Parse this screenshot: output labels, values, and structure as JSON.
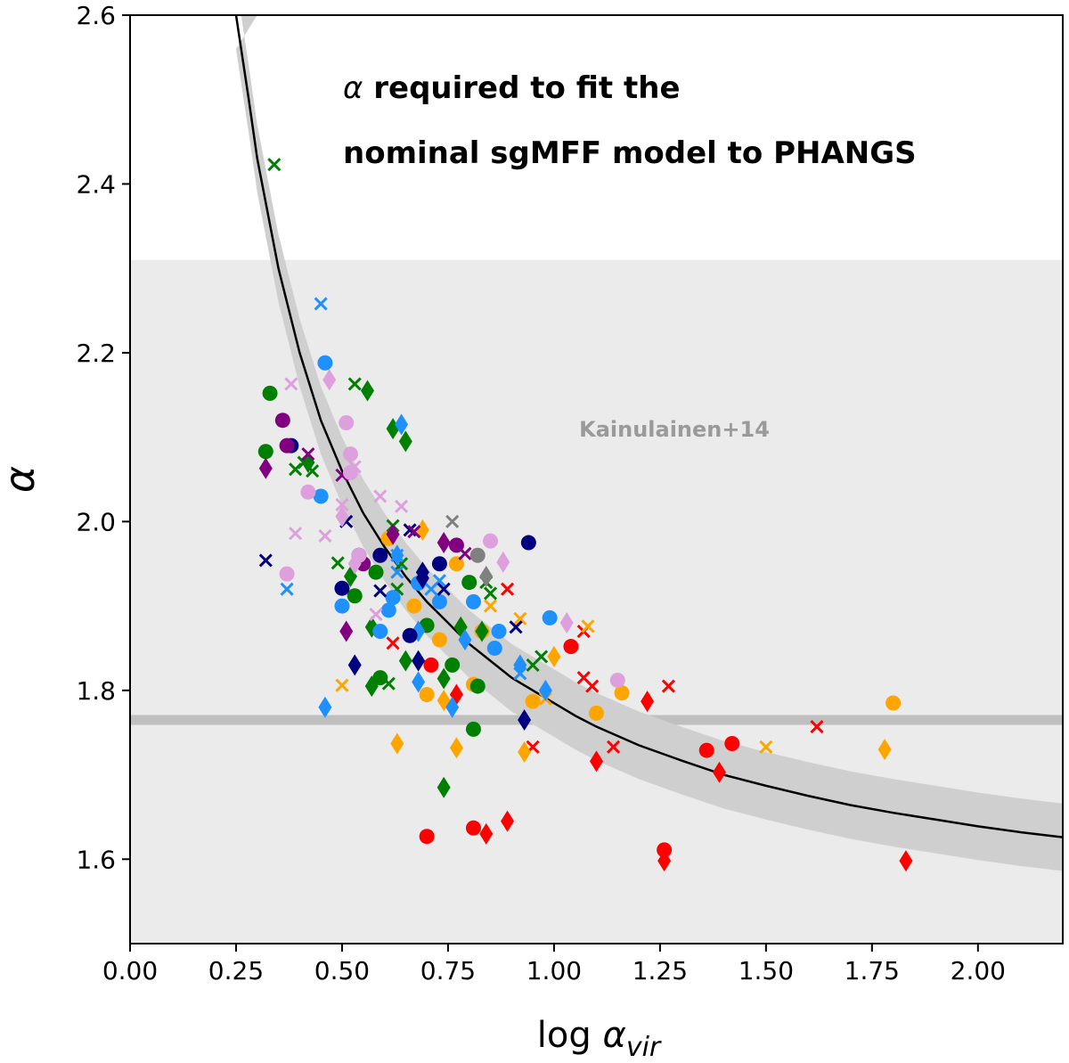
{
  "chart_data": {
    "type": "scatter",
    "title": "",
    "xlabel_base": "log ",
    "xlabel_symbol": "α",
    "xlabel_sub": "vir",
    "ylabel": "α",
    "xlim": [
      0.0,
      2.2
    ],
    "ylim": [
      1.5,
      2.6
    ],
    "xticks": [
      0.0,
      0.25,
      0.5,
      0.75,
      1.0,
      1.25,
      1.5,
      1.75,
      2.0
    ],
    "xtick_labels": [
      "0.00",
      "0.25",
      "0.50",
      "0.75",
      "1.00",
      "1.25",
      "1.50",
      "1.75",
      "2.00"
    ],
    "yticks": [
      1.6,
      1.8,
      2.0,
      2.2,
      2.4,
      2.6
    ],
    "ytick_labels": [
      "1.6",
      "1.8",
      "2.0",
      "2.2",
      "2.4",
      "2.6"
    ],
    "annotations": {
      "title_line1_symbol": "α",
      "title_line1_rest": " required to fit the",
      "title_line2": "nominal sgMFF model to PHANGS",
      "band_label": "Kainulainen+14"
    },
    "shaded_band": {
      "y0": 1.5,
      "y1": 2.31,
      "color": "#ebebeb"
    },
    "reference_line": {
      "y": 1.765,
      "color": "#bfbfbf"
    },
    "model_curve": {
      "x": [
        0.25,
        0.28,
        0.3,
        0.35,
        0.4,
        0.45,
        0.5,
        0.55,
        0.6,
        0.65,
        0.7,
        0.75,
        0.8,
        0.85,
        0.9,
        0.95,
        1.0,
        1.05,
        1.1,
        1.2,
        1.3,
        1.4,
        1.5,
        1.6,
        1.7,
        1.8,
        1.9,
        2.0,
        2.1,
        2.2
      ],
      "y": [
        2.6,
        2.5,
        2.43,
        2.3,
        2.2,
        2.12,
        2.06,
        2.01,
        1.97,
        1.935,
        1.905,
        1.88,
        1.855,
        1.835,
        1.815,
        1.8,
        1.785,
        1.77,
        1.757,
        1.735,
        1.717,
        1.7,
        1.687,
        1.675,
        1.664,
        1.655,
        1.647,
        1.639,
        1.632,
        1.626
      ],
      "band_halfwidth": 0.04,
      "line_color": "#000000",
      "band_color": "#cfcfcf"
    },
    "series": [
      {
        "name": "red",
        "color": "#ff0000",
        "points": [
          [
            0.71,
            1.83,
            "o"
          ],
          [
            0.7,
            1.627,
            "o"
          ],
          [
            0.81,
            1.637,
            "o"
          ],
          [
            1.04,
            1.852,
            "o"
          ],
          [
            1.26,
            1.611,
            "o"
          ],
          [
            1.36,
            1.729,
            "o"
          ],
          [
            1.42,
            1.737,
            "o"
          ],
          [
            0.77,
            1.795,
            "d"
          ],
          [
            0.84,
            1.63,
            "d"
          ],
          [
            0.89,
            1.645,
            "d"
          ],
          [
            1.1,
            1.716,
            "d"
          ],
          [
            1.22,
            1.787,
            "d"
          ],
          [
            1.26,
            1.598,
            "d"
          ],
          [
            1.39,
            1.703,
            "d"
          ],
          [
            1.83,
            1.598,
            "d"
          ],
          [
            0.62,
            1.856,
            "x"
          ],
          [
            0.89,
            1.92,
            "x"
          ],
          [
            0.95,
            1.733,
            "x"
          ],
          [
            1.07,
            1.87,
            "x"
          ],
          [
            1.07,
            1.815,
            "x"
          ],
          [
            1.09,
            1.805,
            "x"
          ],
          [
            1.14,
            1.733,
            "x"
          ],
          [
            1.27,
            1.805,
            "x"
          ],
          [
            1.62,
            1.757,
            "x"
          ]
        ]
      },
      {
        "name": "orange",
        "color": "#ffa500",
        "points": [
          [
            0.61,
            1.98,
            "o"
          ],
          [
            0.67,
            1.9,
            "o"
          ],
          [
            0.7,
            1.795,
            "o"
          ],
          [
            0.73,
            1.86,
            "o"
          ],
          [
            0.77,
            1.95,
            "o"
          ],
          [
            0.81,
            1.807,
            "o"
          ],
          [
            0.83,
            1.87,
            "o"
          ],
          [
            0.95,
            1.787,
            "o"
          ],
          [
            1.1,
            1.773,
            "o"
          ],
          [
            1.16,
            1.797,
            "o"
          ],
          [
            1.8,
            1.785,
            "o"
          ],
          [
            0.63,
            1.737,
            "d"
          ],
          [
            0.69,
            1.99,
            "d"
          ],
          [
            0.74,
            1.788,
            "d"
          ],
          [
            0.77,
            1.732,
            "d"
          ],
          [
            0.78,
            1.875,
            "d"
          ],
          [
            0.93,
            1.727,
            "d"
          ],
          [
            1.0,
            1.84,
            "d"
          ],
          [
            1.78,
            1.73,
            "d"
          ],
          [
            0.5,
            1.806,
            "x"
          ],
          [
            0.85,
            1.9,
            "x"
          ],
          [
            0.92,
            1.885,
            "x"
          ],
          [
            0.98,
            1.79,
            "x"
          ],
          [
            1.08,
            1.876,
            "x"
          ],
          [
            1.5,
            1.733,
            "x"
          ]
        ]
      },
      {
        "name": "green",
        "color": "#008000",
        "points": [
          [
            0.33,
            2.152,
            "o"
          ],
          [
            0.32,
            2.083,
            "o"
          ],
          [
            0.58,
            1.94,
            "o"
          ],
          [
            0.53,
            1.912,
            "o"
          ],
          [
            0.59,
            1.815,
            "o"
          ],
          [
            0.7,
            1.877,
            "o"
          ],
          [
            0.76,
            1.83,
            "o"
          ],
          [
            0.8,
            1.928,
            "o"
          ],
          [
            0.82,
            1.805,
            "o"
          ],
          [
            0.81,
            1.754,
            "o"
          ],
          [
            0.56,
            2.155,
            "d"
          ],
          [
            0.65,
            2.095,
            "d"
          ],
          [
            0.62,
            2.11,
            "d"
          ],
          [
            0.42,
            2.07,
            "d"
          ],
          [
            0.52,
            1.935,
            "d"
          ],
          [
            0.57,
            1.875,
            "d"
          ],
          [
            0.57,
            1.805,
            "d"
          ],
          [
            0.65,
            1.835,
            "d"
          ],
          [
            0.74,
            1.685,
            "d"
          ],
          [
            0.74,
            1.814,
            "d"
          ],
          [
            0.78,
            1.875,
            "d"
          ],
          [
            0.83,
            1.87,
            "d"
          ],
          [
            0.34,
            2.423,
            "x"
          ],
          [
            0.53,
            2.163,
            "x"
          ],
          [
            0.41,
            2.07,
            "x"
          ],
          [
            0.43,
            2.06,
            "x"
          ],
          [
            0.39,
            2.062,
            "x"
          ],
          [
            0.49,
            1.951,
            "x"
          ],
          [
            0.62,
            1.995,
            "x"
          ],
          [
            0.64,
            1.95,
            "x"
          ],
          [
            0.61,
            1.808,
            "x"
          ],
          [
            0.63,
            1.92,
            "x"
          ],
          [
            0.84,
            1.928,
            "x"
          ],
          [
            0.85,
            1.915,
            "x"
          ],
          [
            0.95,
            1.83,
            "x"
          ],
          [
            0.97,
            1.84,
            "x"
          ]
        ]
      },
      {
        "name": "dodgerblue",
        "color": "#1e90ff",
        "points": [
          [
            0.46,
            2.188,
            "o"
          ],
          [
            0.45,
            2.03,
            "o"
          ],
          [
            0.5,
            1.9,
            "o"
          ],
          [
            0.59,
            1.87,
            "o"
          ],
          [
            0.61,
            1.895,
            "o"
          ],
          [
            0.62,
            1.91,
            "o"
          ],
          [
            0.68,
            1.927,
            "o"
          ],
          [
            0.73,
            1.905,
            "o"
          ],
          [
            0.81,
            1.905,
            "o"
          ],
          [
            0.86,
            1.85,
            "o"
          ],
          [
            0.87,
            1.87,
            "o"
          ],
          [
            0.99,
            1.886,
            "o"
          ],
          [
            0.64,
            2.115,
            "d"
          ],
          [
            0.46,
            1.78,
            "d"
          ],
          [
            0.63,
            1.96,
            "d"
          ],
          [
            0.68,
            1.87,
            "d"
          ],
          [
            0.68,
            1.81,
            "d"
          ],
          [
            0.76,
            1.78,
            "d"
          ],
          [
            0.79,
            1.86,
            "d"
          ],
          [
            0.92,
            1.83,
            "d"
          ],
          [
            0.98,
            1.8,
            "d"
          ],
          [
            0.45,
            2.258,
            "x"
          ],
          [
            0.37,
            1.92,
            "x"
          ],
          [
            0.63,
            1.96,
            "x"
          ],
          [
            0.71,
            1.92,
            "x"
          ],
          [
            0.73,
            1.93,
            "x"
          ],
          [
            0.92,
            1.82,
            "x"
          ],
          [
            0.63,
            1.94,
            "x"
          ]
        ]
      },
      {
        "name": "navy",
        "color": "#000080",
        "points": [
          [
            0.38,
            2.09,
            "o"
          ],
          [
            0.5,
            1.921,
            "o"
          ],
          [
            0.54,
            1.96,
            "o"
          ],
          [
            0.59,
            1.96,
            "o"
          ],
          [
            0.66,
            1.865,
            "o"
          ],
          [
            0.73,
            1.95,
            "o"
          ],
          [
            0.94,
            1.975,
            "o"
          ],
          [
            0.69,
            1.94,
            "d"
          ],
          [
            0.69,
            1.933,
            "d"
          ],
          [
            0.53,
            1.83,
            "d"
          ],
          [
            0.68,
            1.835,
            "d"
          ],
          [
            0.93,
            1.765,
            "d"
          ],
          [
            0.32,
            1.954,
            "x"
          ],
          [
            0.51,
            2.0,
            "x"
          ],
          [
            0.59,
            1.918,
            "x"
          ],
          [
            0.66,
            1.99,
            "x"
          ],
          [
            0.74,
            1.92,
            "x"
          ],
          [
            0.91,
            1.875,
            "x"
          ]
        ]
      },
      {
        "name": "purple",
        "color": "#800080",
        "points": [
          [
            0.36,
            2.12,
            "o"
          ],
          [
            0.37,
            2.09,
            "o"
          ],
          [
            0.55,
            1.95,
            "o"
          ],
          [
            0.77,
            1.972,
            "o"
          ],
          [
            0.32,
            2.063,
            "d"
          ],
          [
            0.51,
            1.87,
            "d"
          ],
          [
            0.62,
            1.985,
            "d"
          ],
          [
            0.74,
            1.975,
            "d"
          ],
          [
            0.42,
            2.08,
            "x"
          ],
          [
            0.5,
            2.055,
            "x"
          ],
          [
            0.67,
            1.988,
            "x"
          ],
          [
            0.79,
            1.962,
            "x"
          ]
        ]
      },
      {
        "name": "plum",
        "color": "#dda0dd",
        "points": [
          [
            0.51,
            2.117,
            "o"
          ],
          [
            0.52,
            2.08,
            "o"
          ],
          [
            0.52,
            2.058,
            "o"
          ],
          [
            0.42,
            2.035,
            "o"
          ],
          [
            0.37,
            1.938,
            "o"
          ],
          [
            0.54,
            1.96,
            "o"
          ],
          [
            0.85,
            1.977,
            "o"
          ],
          [
            1.15,
            1.812,
            "o"
          ],
          [
            0.47,
            2.168,
            "d"
          ],
          [
            0.5,
            2.006,
            "d"
          ],
          [
            0.53,
            1.95,
            "d"
          ],
          [
            0.88,
            1.952,
            "d"
          ],
          [
            1.03,
            1.88,
            "d"
          ],
          [
            0.38,
            2.163,
            "x"
          ],
          [
            0.5,
            2.02,
            "x"
          ],
          [
            0.39,
            1.986,
            "x"
          ],
          [
            0.46,
            1.983,
            "x"
          ],
          [
            0.53,
            2.065,
            "x"
          ],
          [
            0.59,
            2.03,
            "x"
          ],
          [
            0.64,
            2.018,
            "x"
          ],
          [
            0.58,
            1.89,
            "x"
          ]
        ]
      },
      {
        "name": "gray",
        "color": "#808080",
        "points": [
          [
            0.82,
            1.96,
            "o"
          ],
          [
            0.84,
            1.935,
            "d"
          ],
          [
            0.76,
            2.0,
            "x"
          ]
        ]
      }
    ]
  }
}
